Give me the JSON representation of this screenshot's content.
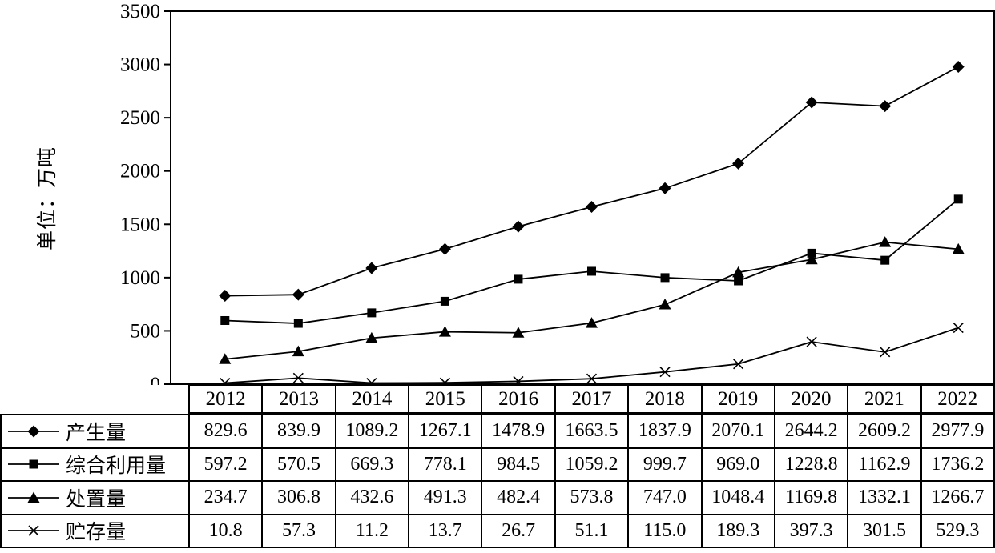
{
  "chart_data": {
    "type": "line",
    "title": "",
    "y_axis_title": "单位：万吨",
    "xlabel": "",
    "ylabel": "单位：万吨",
    "y_min": 0,
    "y_max": 3500,
    "y_step": 500,
    "grid": false,
    "legend_position": "table-left",
    "colors": {
      "line": "#000000",
      "background": "#ffffff"
    },
    "categories": [
      "2012",
      "2013",
      "2014",
      "2015",
      "2016",
      "2017",
      "2018",
      "2019",
      "2020",
      "2021",
      "2022"
    ],
    "series": [
      {
        "name": "产生量",
        "marker": "diamond",
        "values": [
          829.6,
          839.9,
          1089.2,
          1267.1,
          1478.9,
          1663.5,
          1837.9,
          2070.1,
          2644.2,
          2609.2,
          2977.9
        ]
      },
      {
        "name": "综合利用量",
        "marker": "square",
        "values": [
          597.2,
          570.5,
          669.3,
          778.1,
          984.5,
          1059.2,
          999.7,
          969.0,
          1228.8,
          1162.9,
          1736.2
        ]
      },
      {
        "name": "处置量",
        "marker": "triangle",
        "values": [
          234.7,
          306.8,
          432.6,
          491.3,
          482.4,
          573.8,
          747.0,
          1048.4,
          1169.8,
          1332.1,
          1266.7
        ]
      },
      {
        "name": "贮存量",
        "marker": "x",
        "values": [
          10.8,
          57.3,
          11.2,
          13.7,
          26.7,
          51.1,
          115.0,
          189.3,
          397.3,
          301.5,
          529.3
        ]
      }
    ]
  }
}
